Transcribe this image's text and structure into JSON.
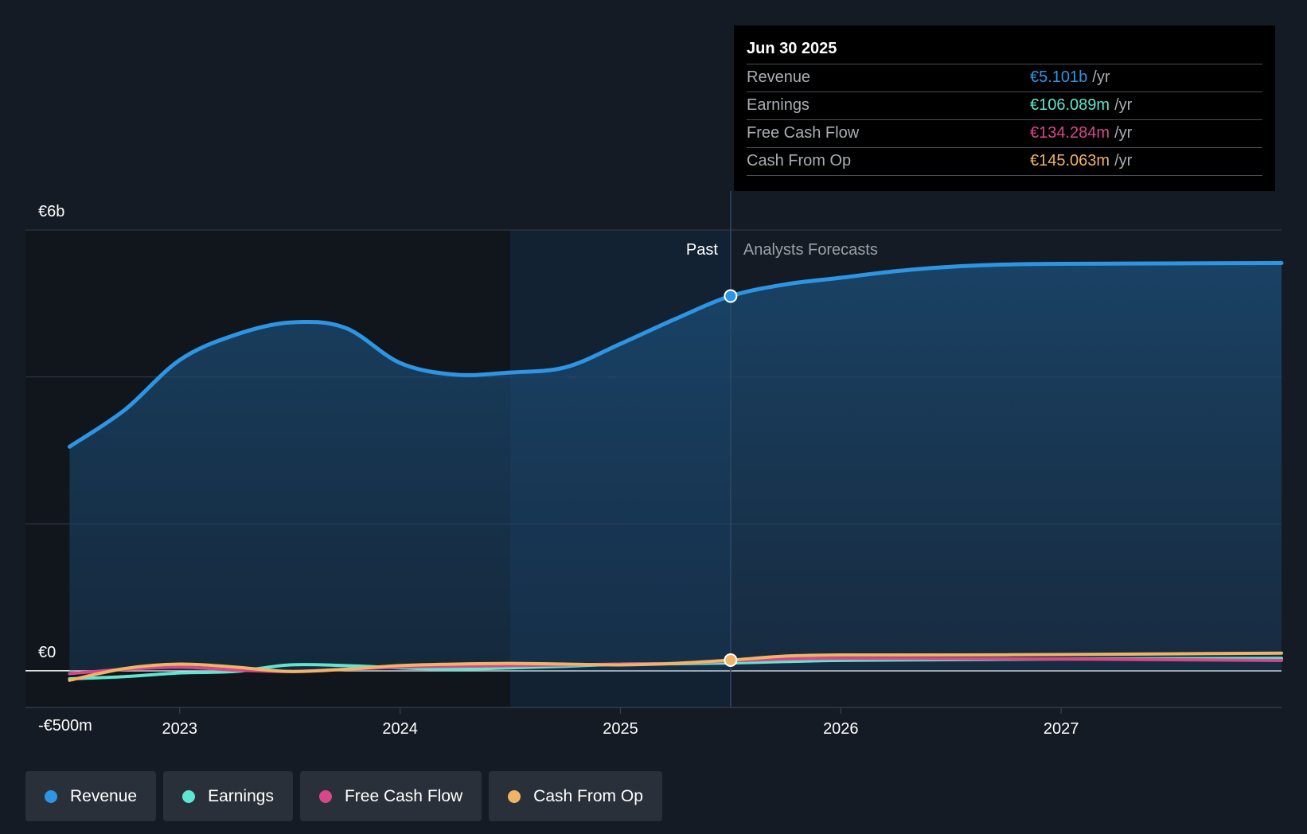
{
  "tooltip": {
    "date": "Jun 30 2025",
    "rows": [
      {
        "label": "Revenue",
        "value": "€5.101b",
        "unit": "/yr",
        "color": "#2d95e3"
      },
      {
        "label": "Earnings",
        "value": "€106.089m",
        "unit": "/yr",
        "color": "#5ee6d0"
      },
      {
        "label": "Free Cash Flow",
        "value": "€134.284m",
        "unit": "/yr",
        "color": "#d6488a"
      },
      {
        "label": "Cash From Op",
        "value": "€145.063m",
        "unit": "/yr",
        "color": "#f0b466"
      }
    ]
  },
  "zones": {
    "past_label": "Past",
    "forecast_label": "Analysts Forecasts"
  },
  "legend": [
    {
      "label": "Revenue",
      "color": "#2d95e3",
      "icon": "circle-dot-icon"
    },
    {
      "label": "Earnings",
      "color": "#5ee6d0",
      "icon": "circle-dot-icon"
    },
    {
      "label": "Free Cash Flow",
      "color": "#d6488a",
      "icon": "circle-dot-icon"
    },
    {
      "label": "Cash From Op",
      "color": "#f0b466",
      "icon": "circle-dot-icon"
    }
  ],
  "chart_data": {
    "type": "line",
    "title": "",
    "xlabel": "",
    "ylabel": "",
    "y_ticks": [
      {
        "value": 6000,
        "label": "€6b"
      },
      {
        "value": 0,
        "label": "€0"
      },
      {
        "value": -500,
        "label": "-€500m"
      }
    ],
    "x_ticks": [
      {
        "value": 2023.0,
        "label": "2023"
      },
      {
        "value": 2024.0,
        "label": "2024"
      },
      {
        "value": 2025.0,
        "label": "2025"
      },
      {
        "value": 2026.0,
        "label": "2026"
      },
      {
        "value": 2027.0,
        "label": "2027"
      }
    ],
    "ylim": [
      -500,
      6000
    ],
    "xlim": [
      2022.3,
      2028.0
    ],
    "grid": true,
    "past_end": 2025.5,
    "highlight_start": 2024.5,
    "unit": "€m",
    "series": [
      {
        "name": "Revenue",
        "color": "#2d95e3",
        "area": true,
        "points": [
          [
            2022.5,
            3050
          ],
          [
            2022.75,
            3550
          ],
          [
            2023.0,
            4230
          ],
          [
            2023.25,
            4570
          ],
          [
            2023.5,
            4740
          ],
          [
            2023.75,
            4670
          ],
          [
            2024.0,
            4190
          ],
          [
            2024.25,
            4030
          ],
          [
            2024.5,
            4060
          ],
          [
            2024.75,
            4130
          ],
          [
            2025.0,
            4450
          ],
          [
            2025.25,
            4790
          ],
          [
            2025.5,
            5101
          ],
          [
            2025.75,
            5260
          ],
          [
            2026.0,
            5350
          ],
          [
            2026.25,
            5440
          ],
          [
            2026.5,
            5500
          ],
          [
            2026.75,
            5530
          ],
          [
            2027.0,
            5540
          ],
          [
            2027.5,
            5545
          ],
          [
            2028.0,
            5550
          ]
        ]
      },
      {
        "name": "Earnings",
        "color": "#5ee6d0",
        "points": [
          [
            2022.5,
            -110
          ],
          [
            2022.75,
            -80
          ],
          [
            2023.0,
            -30
          ],
          [
            2023.25,
            -10
          ],
          [
            2023.5,
            80
          ],
          [
            2023.75,
            70
          ],
          [
            2024.0,
            40
          ],
          [
            2024.25,
            20
          ],
          [
            2024.5,
            40
          ],
          [
            2024.75,
            60
          ],
          [
            2025.0,
            90
          ],
          [
            2025.25,
            95
          ],
          [
            2025.5,
            106
          ],
          [
            2025.75,
            125
          ],
          [
            2026.0,
            140
          ],
          [
            2026.5,
            150
          ],
          [
            2027.0,
            160
          ],
          [
            2027.5,
            165
          ],
          [
            2028.0,
            170
          ]
        ]
      },
      {
        "name": "Free Cash Flow",
        "color": "#d6488a",
        "points": [
          [
            2022.5,
            -40
          ],
          [
            2022.75,
            20
          ],
          [
            2023.0,
            50
          ],
          [
            2023.25,
            10
          ],
          [
            2023.5,
            -10
          ],
          [
            2023.75,
            20
          ],
          [
            2024.0,
            50
          ],
          [
            2024.25,
            60
          ],
          [
            2024.5,
            70
          ],
          [
            2024.75,
            80
          ],
          [
            2025.0,
            90
          ],
          [
            2025.25,
            100
          ],
          [
            2025.5,
            134
          ],
          [
            2025.75,
            160
          ],
          [
            2026.0,
            170
          ],
          [
            2026.5,
            165
          ],
          [
            2027.0,
            160
          ],
          [
            2027.5,
            150
          ],
          [
            2028.0,
            140
          ]
        ]
      },
      {
        "name": "Cash From Op",
        "color": "#f0b466",
        "points": [
          [
            2022.5,
            -130
          ],
          [
            2022.75,
            30
          ],
          [
            2023.0,
            90
          ],
          [
            2023.25,
            50
          ],
          [
            2023.5,
            -10
          ],
          [
            2023.75,
            20
          ],
          [
            2024.0,
            70
          ],
          [
            2024.25,
            90
          ],
          [
            2024.5,
            100
          ],
          [
            2024.75,
            90
          ],
          [
            2025.0,
            80
          ],
          [
            2025.25,
            100
          ],
          [
            2025.5,
            145
          ],
          [
            2025.75,
            200
          ],
          [
            2026.0,
            215
          ],
          [
            2026.5,
            215
          ],
          [
            2027.0,
            220
          ],
          [
            2027.5,
            230
          ],
          [
            2028.0,
            240
          ]
        ]
      }
    ]
  }
}
